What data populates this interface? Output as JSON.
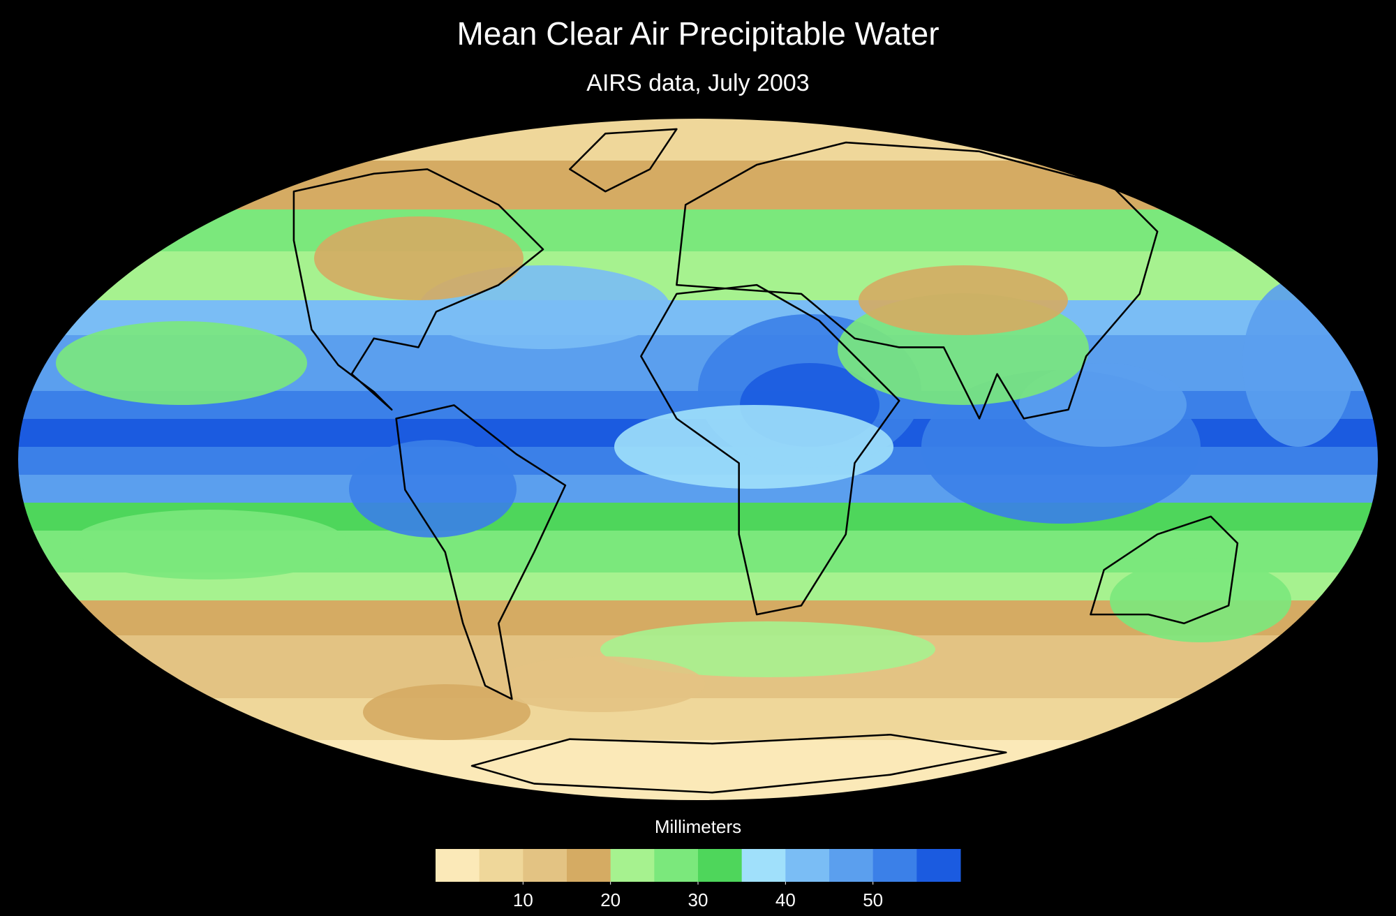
{
  "header": {
    "title": "Mean Clear Air Precipitable Water",
    "subtitle": "AIRS data, July 2003"
  },
  "legend": {
    "label": "Millimeters",
    "colors": [
      "#fbe9b8",
      "#efd79a",
      "#e3c383",
      "#d5ab63",
      "#a6f28f",
      "#7be87c",
      "#4ed65b",
      "#a0e0fb",
      "#7abdf5",
      "#5b9fee",
      "#3b80e8",
      "#1b5be0"
    ],
    "lim": [
      0,
      60
    ],
    "ticks": [
      10,
      20,
      30,
      40,
      50
    ]
  }
}
